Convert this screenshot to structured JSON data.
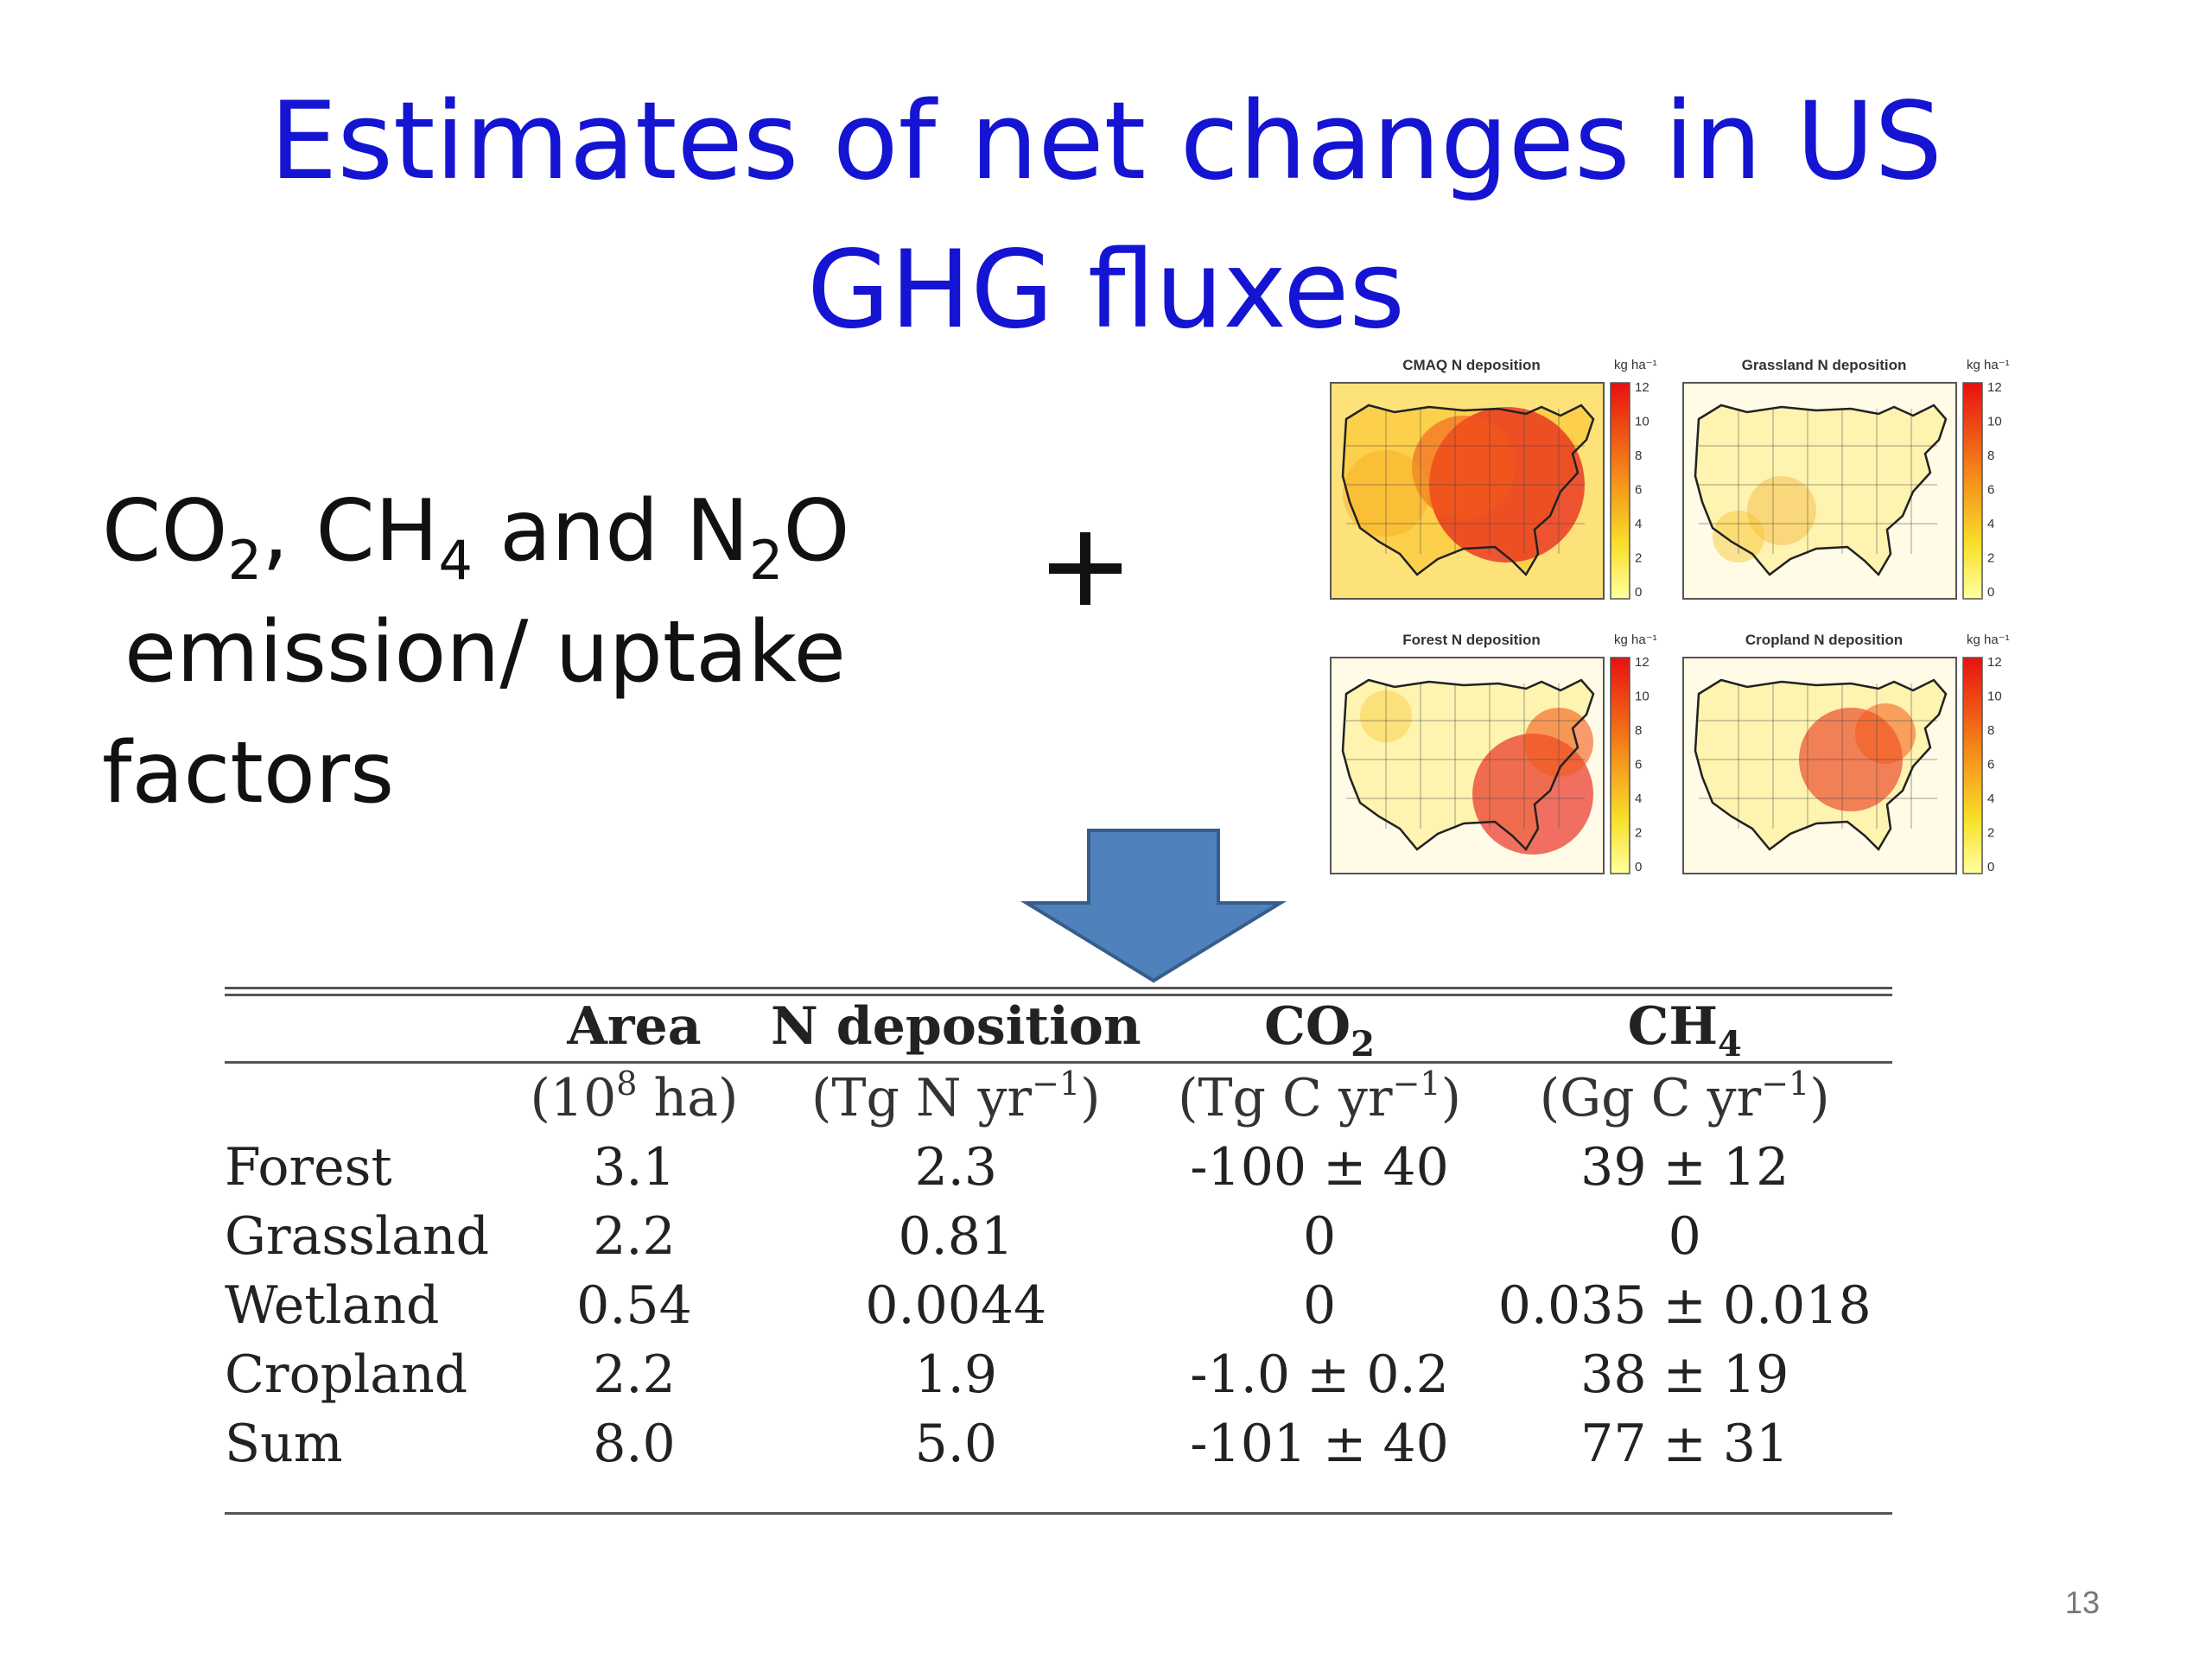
{
  "title": {
    "line1": "Estimates of net changes in US",
    "line2": "GHG fluxes"
  },
  "left_text": {
    "co2_base": "CO",
    "co2_sub": "2",
    "sep1": ", ",
    "ch4_base": "CH",
    "ch4_sub": "4",
    "and": " and ",
    "n2o_n": "N",
    "n2o_sub": "2",
    "n2o_o": "O",
    "line2": "emission/ uptake",
    "line3": "factors"
  },
  "maps": [
    {
      "title": "CMAQ N deposition",
      "unit": "kg ha⁻¹"
    },
    {
      "title": "Grassland N deposition",
      "unit": "kg ha⁻¹"
    },
    {
      "title": "Forest N deposition",
      "unit": "kg ha⁻¹"
    },
    {
      "title": "Cropland N deposition",
      "unit": "kg ha⁻¹"
    }
  ],
  "colorbar_ticks": [
    "12",
    "10",
    "8",
    "6",
    "4",
    "2",
    "0"
  ],
  "colors": {
    "title": "#1414d2",
    "arrow_fill": "#4f81bd",
    "arrow_stroke": "#385d8a"
  },
  "table": {
    "headers": {
      "area": "Area",
      "ndep": "N deposition",
      "co2_base": "CO",
      "co2_sub": "2",
      "ch4_base": "CH",
      "ch4_sub": "4"
    },
    "units": {
      "area_a": "(10",
      "area_sup": "8",
      "area_b": " ha)",
      "ndep_a": "(Tg N yr",
      "ndep_sup": "−1",
      "ndep_b": ")",
      "co2_a": "(Tg C yr",
      "co2_sup": "−1",
      "co2_b": ")",
      "ch4_a": "(Gg C yr",
      "ch4_sup": "−1",
      "ch4_b": ")"
    },
    "rows": [
      {
        "name": "Forest",
        "area": "3.1",
        "ndep": "2.3",
        "co2": "-100 ± 40",
        "ch4": "39 ± 12"
      },
      {
        "name": "Grassland",
        "area": "2.2",
        "ndep": "0.81",
        "co2": "0",
        "ch4": "0"
      },
      {
        "name": "Wetland",
        "area": "0.54",
        "ndep": "0.0044",
        "co2": "0",
        "ch4": "0.035 ± 0.018"
      },
      {
        "name": "Cropland",
        "area": "2.2",
        "ndep": "1.9",
        "co2": "-1.0 ± 0.2",
        "ch4": "38 ± 19"
      },
      {
        "name": "Sum",
        "area": "8.0",
        "ndep": "5.0",
        "co2": "-101 ± 40",
        "ch4": "77 ± 31"
      }
    ]
  },
  "page_number": "13"
}
